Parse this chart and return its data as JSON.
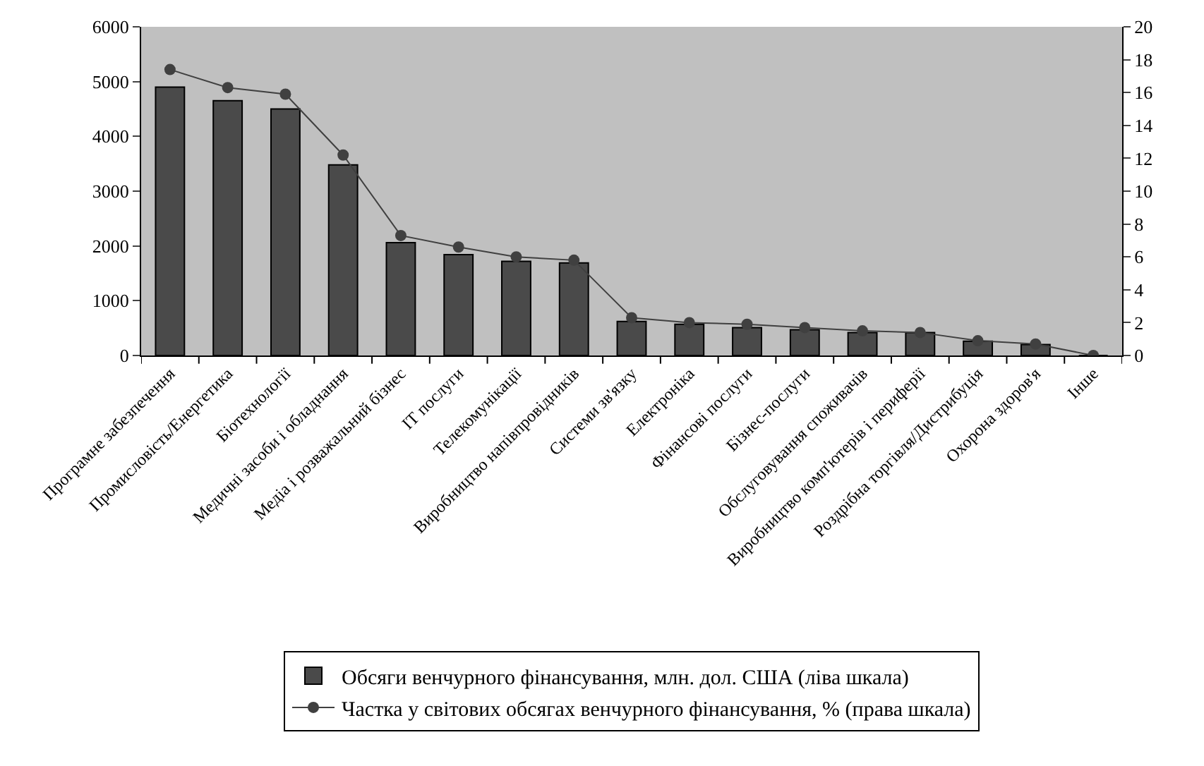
{
  "chart_data": {
    "type": "bar",
    "categories": [
      "Програмне забезпечення",
      "Промисловість/Енергетика",
      "Біотехнології",
      "Медичні засоби і обладнання",
      "Медіа і розважальний бізнес",
      "ІТ послуги",
      "Телекомунікації",
      "Виробництво напівпровідників",
      "Системи зв'язку",
      "Електроніка",
      "Фінансові послуги",
      "Бізнес-послуги",
      "Обслуговування споживачів",
      "Виробництво комп'ютерів і периферії",
      "Роздрібна торгівля/Дистрибуція",
      "Охорона здоров'я",
      "Інше"
    ],
    "series": [
      {
        "name": "Обсяги венчурного фінансування, млн. дол. США (ліва шкала)",
        "color": "#4a4a4a",
        "values": [
          4900,
          4650,
          4500,
          3480,
          2060,
          1840,
          1720,
          1690,
          620,
          570,
          510,
          470,
          420,
          420,
          260,
          200,
          0
        ]
      },
      {
        "name": "Частка у світових обсягах венчурного фінансування, % (права шкала)",
        "type": "line",
        "axis": "y2",
        "color": "#404040",
        "marker": "circle",
        "values": [
          17.4,
          16.3,
          15.9,
          12.2,
          7.3,
          6.6,
          6.0,
          5.8,
          2.3,
          2.0,
          1.9,
          1.7,
          1.5,
          1.4,
          0.9,
          0.7,
          0
        ]
      }
    ],
    "ylim": [
      0,
      6000
    ],
    "yticks": [
      0,
      1000,
      2000,
      3000,
      4000,
      5000,
      6000
    ],
    "y2lim": [
      0,
      20
    ],
    "y2ticks": [
      0,
      2,
      4,
      6,
      8,
      10,
      12,
      14,
      16,
      18,
      20
    ],
    "grid": false,
    "legend": "bottom"
  }
}
